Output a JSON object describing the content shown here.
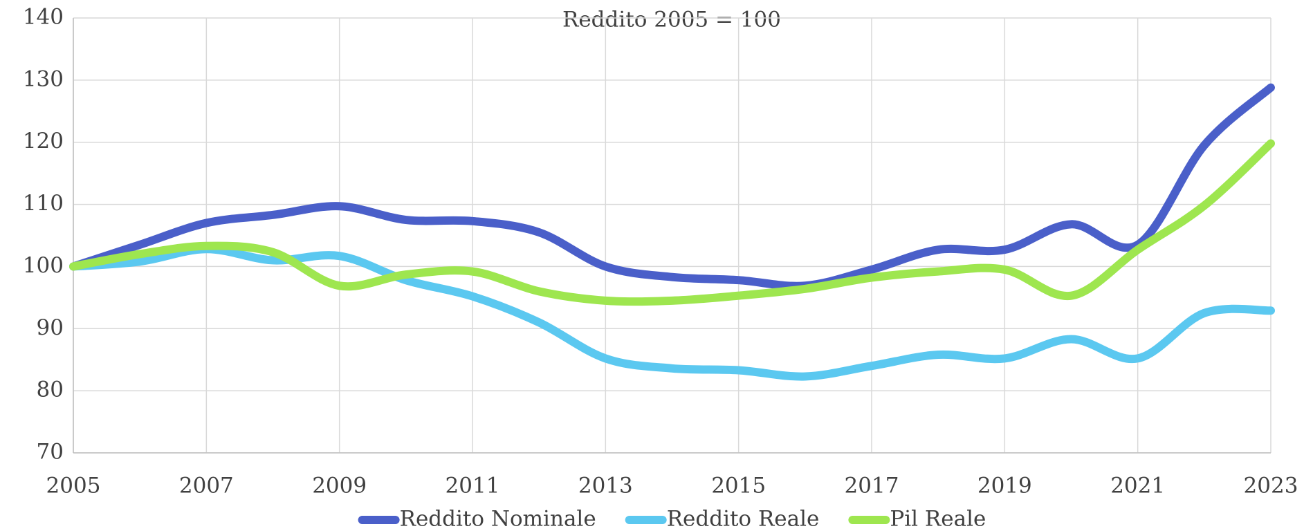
{
  "chart_data": {
    "type": "line",
    "title": "Reddito 2005 = 100",
    "x": [
      2005,
      2006,
      2007,
      2008,
      2009,
      2010,
      2011,
      2012,
      2013,
      2014,
      2015,
      2016,
      2017,
      2018,
      2019,
      2020,
      2021,
      2022,
      2023
    ],
    "series": [
      {
        "name": "Reddito Nominale",
        "color": "#4a5fc9",
        "values": [
          100,
          103.5,
          107,
          108.3,
          109.7,
          107.5,
          107.3,
          105.5,
          100,
          98.3,
          97.8,
          96.9,
          99.5,
          102.7,
          102.7,
          106.8,
          103.5,
          119.5,
          128.8
        ]
      },
      {
        "name": "Reddito Reale",
        "color": "#5bc8f0",
        "values": [
          100,
          100.8,
          102.8,
          101,
          101.7,
          97.8,
          95.2,
          91,
          85.2,
          83.6,
          83.3,
          82.3,
          84,
          85.8,
          85.2,
          88.3,
          85.2,
          92.5,
          92.9
        ]
      },
      {
        "name": "Pil Reale",
        "color": "#9ee64f",
        "values": [
          100,
          102,
          103.3,
          102.3,
          96.9,
          98.7,
          99.2,
          96,
          94.5,
          94.5,
          95.3,
          96.4,
          98.2,
          99.2,
          99.5,
          95.3,
          102.7,
          109.8,
          119.8
        ]
      }
    ],
    "xlim": [
      2005,
      2023
    ],
    "xticks": [
      2005,
      2007,
      2009,
      2011,
      2013,
      2015,
      2017,
      2019,
      2021,
      2023
    ],
    "ylim": [
      70,
      140
    ],
    "yticks": [
      70,
      80,
      90,
      100,
      110,
      120,
      130,
      140
    ],
    "grid": true,
    "legend": "bottom"
  }
}
